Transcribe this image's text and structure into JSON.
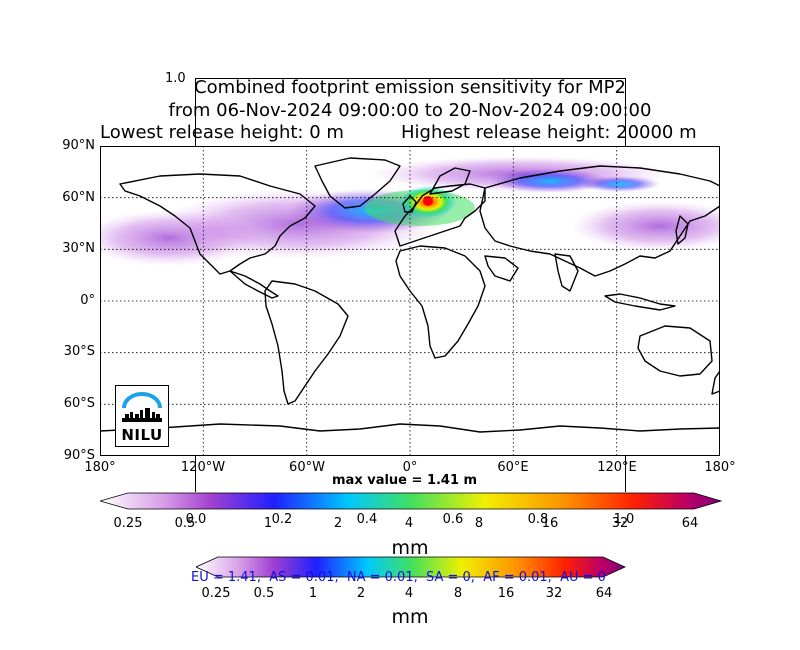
{
  "title": {
    "line1": "Combined footprint emission sensitivity for MP2",
    "line2": "from 06-Nov-2024 09:00:00 to 20-Nov-2024 09:00:00",
    "release_low": "Lowest release height: 0 m",
    "release_high": "Highest release height: 20000 m"
  },
  "stray_axis_label": "1.0",
  "map": {
    "lat_labels": [
      "90°N",
      "60°N",
      "30°N",
      "0°",
      "30°S",
      "60°S",
      "90°S"
    ],
    "lon_labels": [
      "180°",
      "120°W",
      "60°W",
      "0°",
      "60°E",
      "120°E",
      "180°"
    ],
    "max_value": "max value = 1.41 m",
    "logo_text": "NILU",
    "colors": {
      "land_outline": "#000000",
      "grid": "#000000",
      "plume_core": "#ff0000",
      "logo_arc": "#1aa3e8"
    }
  },
  "colorbar_main": {
    "ticks": [
      "0.25",
      "0.5",
      "1",
      "2",
      "4",
      "8",
      "16",
      "32",
      "64"
    ],
    "unit": "mm",
    "colors": [
      "#ffffff",
      "#d8a0e8",
      "#a040d0",
      "#2020ff",
      "#00c8ff",
      "#40e060",
      "#f0f000",
      "#ff9000",
      "#ff2000",
      "#c00060",
      "#800080"
    ]
  },
  "colorbar_stray_ticks": [
    "0.0",
    "0.2",
    "0.4",
    "0.6",
    "0.8",
    "1.0"
  ],
  "colorbar_second": {
    "ticks": [
      "0.25",
      "0.5",
      "1",
      "2",
      "4",
      "8",
      "16",
      "32",
      "64"
    ],
    "unit": "mm"
  },
  "region_summary": "EU = 1.41,  AS = 0.01,  NA = 0.01,  SA = 0,  AF = 0.01,  AU = 0"
}
